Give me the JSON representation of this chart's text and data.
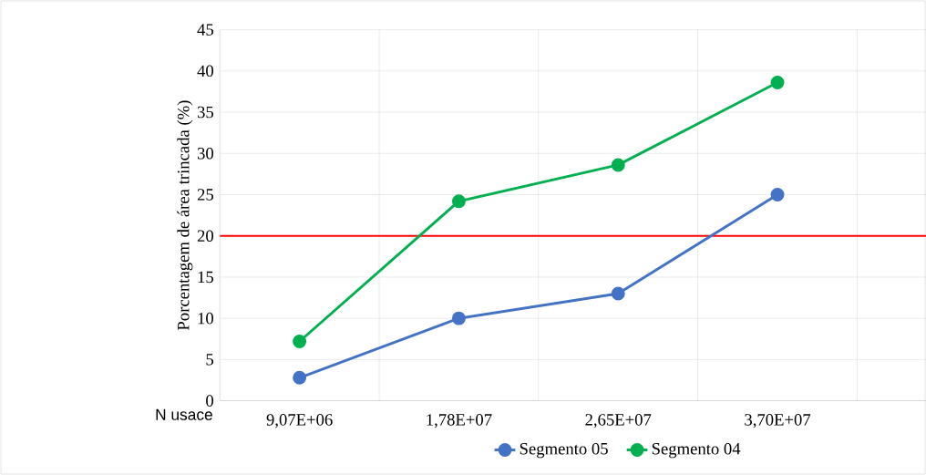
{
  "chart_data": {
    "type": "line",
    "xlabel": "N usace",
    "ylabel": "Porcentagem de área trincada (%)",
    "categories": [
      "9,07E+06",
      "1,78E+07",
      "2,65E+07",
      "3,70E+07",
      null
    ],
    "series": [
      {
        "name": "Segmento 05",
        "color": "#4472c4",
        "values": [
          2.8,
          10.0,
          13.0,
          25.0,
          null
        ]
      },
      {
        "name": "Segmento 04",
        "color": "#00b050",
        "values": [
          7.2,
          24.2,
          28.6,
          38.6,
          null
        ]
      }
    ],
    "ylim": [
      0,
      45
    ],
    "yticks": [
      0,
      5,
      10,
      15,
      20,
      25,
      30,
      35,
      40,
      45
    ],
    "ref_lines": [
      {
        "axis": "y",
        "value": 20,
        "color": "#ff0000"
      }
    ],
    "grid": true,
    "legend": "bottom",
    "marker": "circle",
    "line_style": "solid"
  }
}
